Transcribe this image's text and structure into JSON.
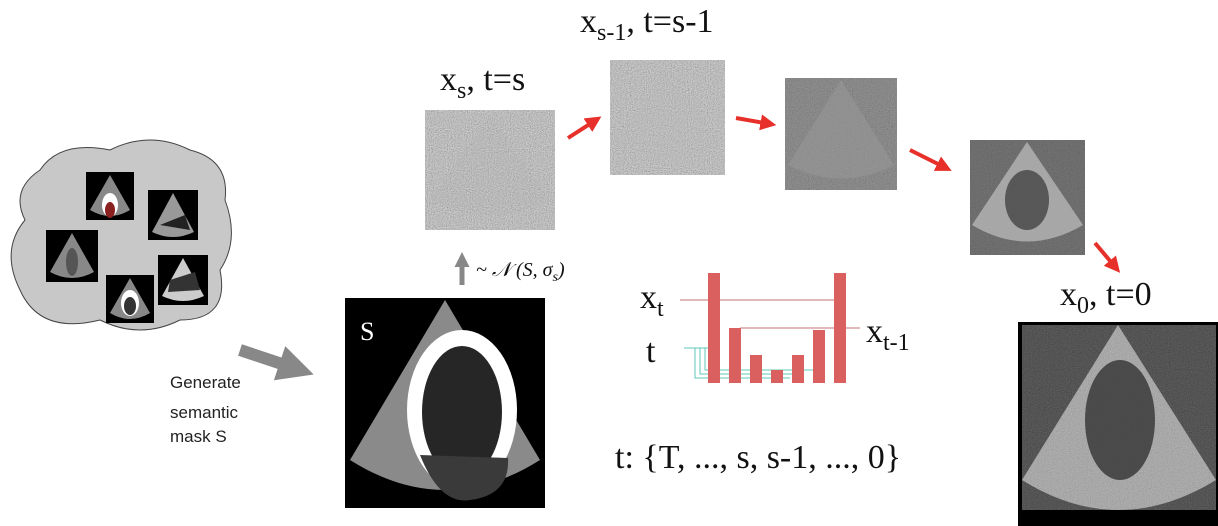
{
  "labels": {
    "xs": {
      "base": "x",
      "sub": "s",
      "rest": ", t=s"
    },
    "xs1": {
      "base": "x",
      "sub": "s-1",
      "rest": ", t=s-1"
    },
    "x0": {
      "base": "x",
      "sub": "0",
      "rest": ", t=0"
    },
    "noise": {
      "prefix": "~ 𝒩 (S, σ",
      "sub": "s",
      "suffix": ")"
    },
    "mask": "S",
    "generate": [
      "Generate",
      "semantic",
      "mask S"
    ],
    "xt": {
      "base": "x",
      "sub": "t"
    },
    "t": "t",
    "xt1": {
      "base": "x",
      "sub": "t-1"
    },
    "schedule": "t: {T, ..., s, s-1, ..., 0}"
  }
}
